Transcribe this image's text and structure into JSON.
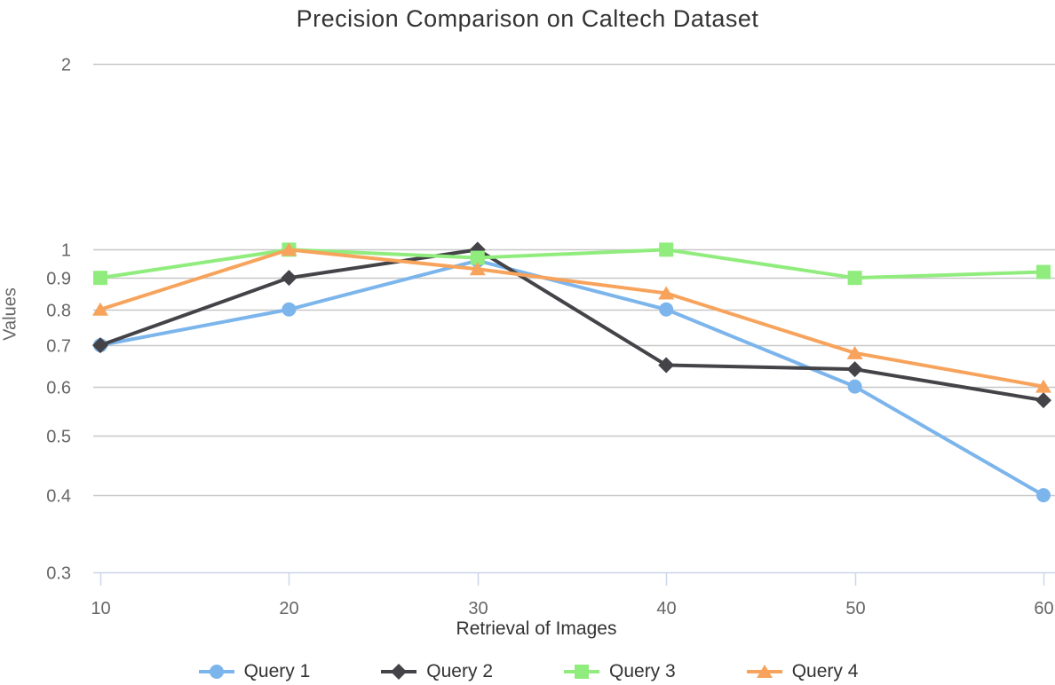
{
  "chart_data": {
    "type": "line",
    "title": "Precision Comparison on Caltech Dataset",
    "xlabel": "Retrieval of Images",
    "ylabel": "Values",
    "x": [
      10,
      20,
      30,
      40,
      50,
      60
    ],
    "x_ticks": [
      10,
      20,
      30,
      40,
      50,
      60
    ],
    "y_ticks": [
      2,
      1,
      0.9,
      0.8,
      0.7,
      0.6,
      0.5,
      0.4,
      0.3
    ],
    "y_scale": "log",
    "ylim": [
      0.3,
      2
    ],
    "grid": true,
    "legend_position": "bottom",
    "series": [
      {
        "name": "Query 1",
        "color": "#7cb5ec",
        "marker": "circle",
        "values": [
          0.7,
          0.8,
          0.96,
          0.8,
          0.6,
          0.4
        ]
      },
      {
        "name": "Query 2",
        "color": "#434348",
        "marker": "diamond",
        "values": [
          0.7,
          0.9,
          1.0,
          0.65,
          0.64,
          0.57
        ]
      },
      {
        "name": "Query 3",
        "color": "#90ed7d",
        "marker": "square",
        "values": [
          0.9,
          1.0,
          0.97,
          1.0,
          0.9,
          0.92
        ]
      },
      {
        "name": "Query 4",
        "color": "#f7a35c",
        "marker": "triangle",
        "values": [
          0.8,
          1.0,
          0.93,
          0.85,
          0.68,
          0.6
        ]
      }
    ],
    "style": {
      "grid_color": "#c8c8c8",
      "axis_line_color": "#ccd6eb",
      "title_color": "#333333",
      "tick_label_color": "#666666"
    }
  }
}
